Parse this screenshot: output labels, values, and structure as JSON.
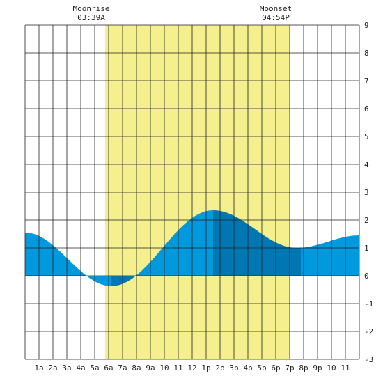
{
  "chart_data": {
    "type": "area",
    "title": "",
    "xlabel": "",
    "ylabel": "",
    "xlim": [
      0,
      24
    ],
    "ylim": [
      -3,
      9
    ],
    "grid": true,
    "x_tick_labels": [
      "1a",
      "2a",
      "3a",
      "4a",
      "5a",
      "6a",
      "7a",
      "8a",
      "9a",
      "10",
      "11",
      "12",
      "1p",
      "2p",
      "3p",
      "4p",
      "5p",
      "6p",
      "7p",
      "8p",
      "9p",
      "10",
      "11"
    ],
    "y_tick_labels": [
      "-3",
      "-2",
      "-1",
      "0",
      "1",
      "2",
      "3",
      "4",
      "5",
      "6",
      "7",
      "8",
      "9"
    ],
    "daylight": {
      "start_hour": 5.75,
      "end_hour": 19.0,
      "color": "#f5ef8e"
    },
    "annotations": [
      {
        "name": "moonrise",
        "title": "Moonrise",
        "time": "03:39A",
        "hour": 5.75
      },
      {
        "name": "moonset",
        "title": "Moonset",
        "time": "04:54P",
        "hour": 19.0
      }
    ],
    "tide_extremes": [
      {
        "hour": 0.0,
        "height": 1.55
      },
      {
        "hour": 6.2,
        "height": -0.37
      },
      {
        "hour": 13.5,
        "height": 2.35
      },
      {
        "hour": 19.5,
        "height": 1.0
      },
      {
        "hour": 24.0,
        "height": 1.45
      }
    ],
    "band_breaks": [
      6.2,
      8.0,
      13.5,
      19.8
    ],
    "colors": {
      "tide_light": "#0099dd",
      "tide_dark": "#0077b3",
      "grid": "#222222",
      "background": "#ffffff"
    }
  }
}
